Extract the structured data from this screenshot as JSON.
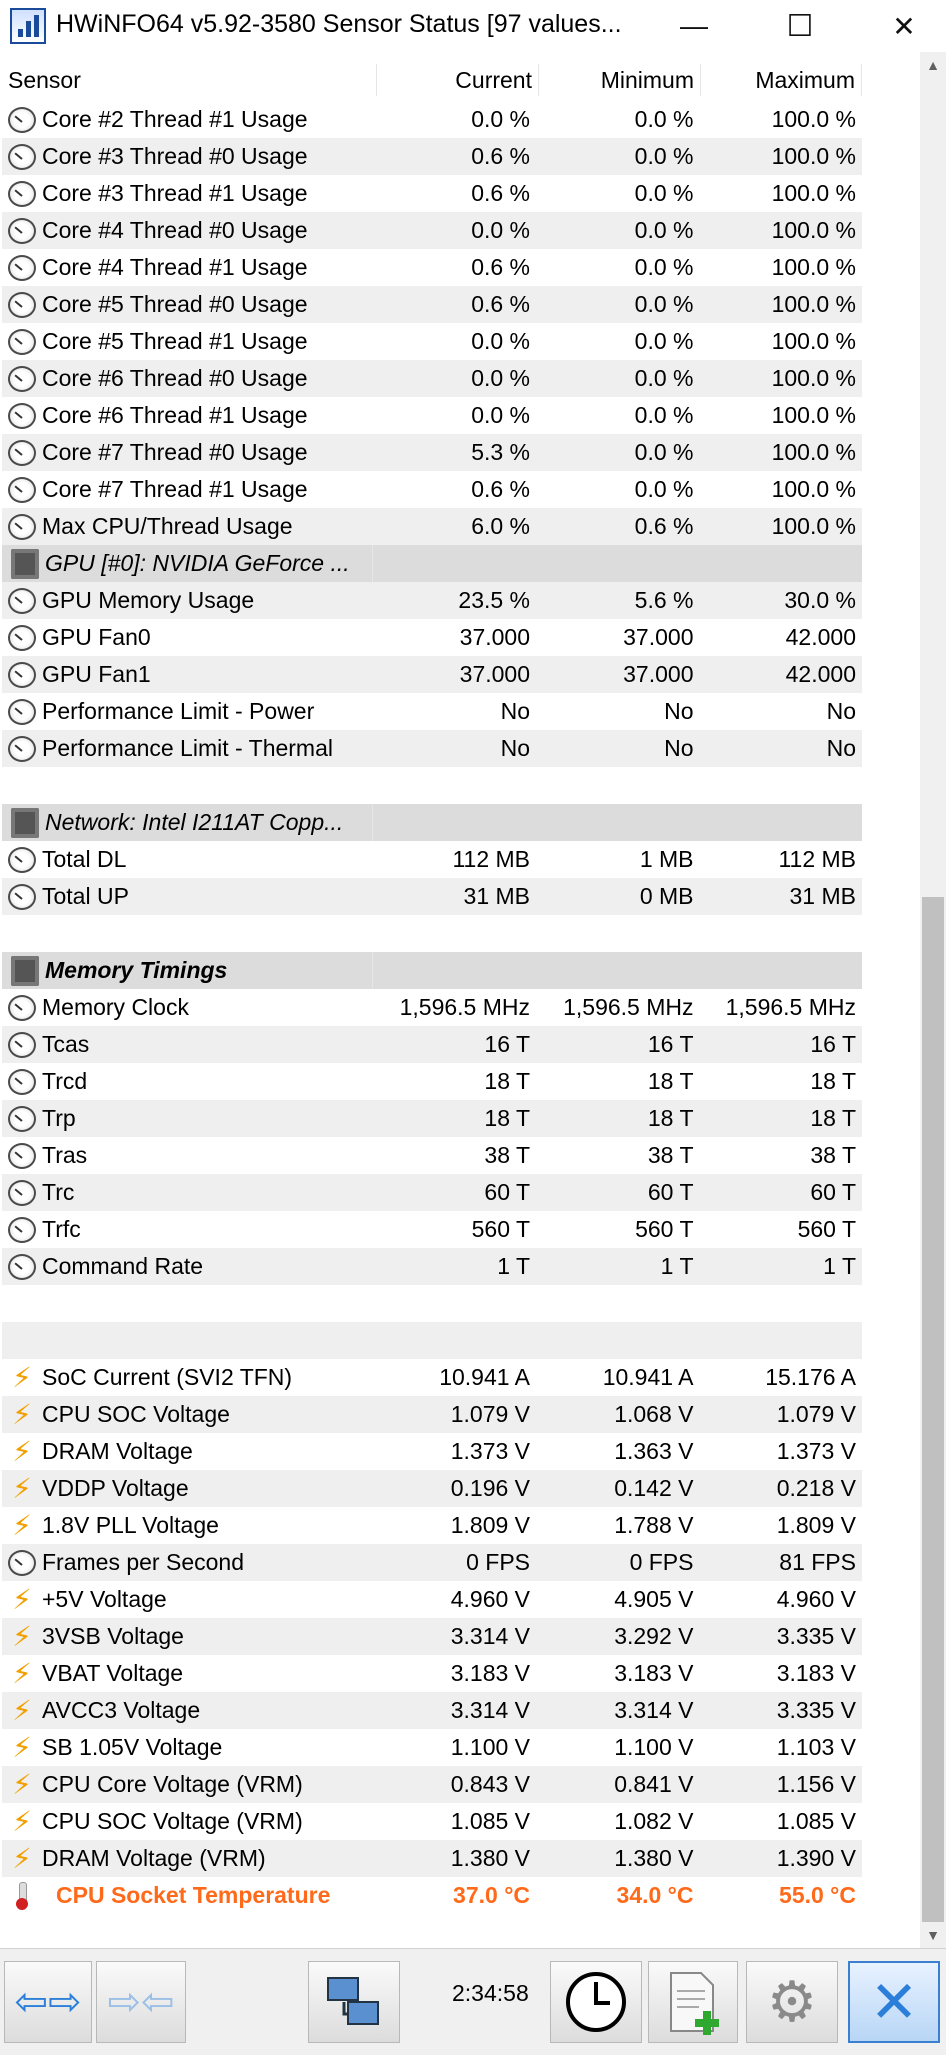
{
  "window": {
    "title": "HWiNFO64 v5.92-3580 Sensor Status [97 values...",
    "minimize": "—",
    "maximize": "☐",
    "close": "✕"
  },
  "columns": [
    "Sensor",
    "Current",
    "Minimum",
    "Maximum"
  ],
  "rows": [
    {
      "icon": "gauge",
      "name": "Core #2 Thread #1 Usage",
      "cur": "0.0 %",
      "min": "0.0 %",
      "max": "100.0 %"
    },
    {
      "icon": "gauge",
      "name": "Core #3 Thread #0 Usage",
      "cur": "0.6 %",
      "min": "0.0 %",
      "max": "100.0 %"
    },
    {
      "icon": "gauge",
      "name": "Core #3 Thread #1 Usage",
      "cur": "0.6 %",
      "min": "0.0 %",
      "max": "100.0 %"
    },
    {
      "icon": "gauge",
      "name": "Core #4 Thread #0 Usage",
      "cur": "0.0 %",
      "min": "0.0 %",
      "max": "100.0 %"
    },
    {
      "icon": "gauge",
      "name": "Core #4 Thread #1 Usage",
      "cur": "0.6 %",
      "min": "0.0 %",
      "max": "100.0 %"
    },
    {
      "icon": "gauge",
      "name": "Core #5 Thread #0 Usage",
      "cur": "0.6 %",
      "min": "0.0 %",
      "max": "100.0 %"
    },
    {
      "icon": "gauge",
      "name": "Core #5 Thread #1 Usage",
      "cur": "0.0 %",
      "min": "0.0 %",
      "max": "100.0 %"
    },
    {
      "icon": "gauge",
      "name": "Core #6 Thread #0 Usage",
      "cur": "0.0 %",
      "min": "0.0 %",
      "max": "100.0 %"
    },
    {
      "icon": "gauge",
      "name": "Core #6 Thread #1 Usage",
      "cur": "0.0 %",
      "min": "0.0 %",
      "max": "100.0 %"
    },
    {
      "icon": "gauge",
      "name": "Core #7 Thread #0 Usage",
      "cur": "5.3 %",
      "min": "0.0 %",
      "max": "100.0 %"
    },
    {
      "icon": "gauge",
      "name": "Core #7 Thread #1 Usage",
      "cur": "0.6 %",
      "min": "0.0 %",
      "max": "100.0 %"
    },
    {
      "icon": "gauge",
      "name": "Max CPU/Thread Usage",
      "cur": "6.0 %",
      "min": "0.6 %",
      "max": "100.0 %"
    },
    {
      "type": "group",
      "icon": "chip",
      "name": "GPU [#0]: NVIDIA GeForce ..."
    },
    {
      "icon": "gauge",
      "name": "GPU Memory Usage",
      "cur": "23.5 %",
      "min": "5.6 %",
      "max": "30.0 %"
    },
    {
      "icon": "gauge",
      "name": "GPU Fan0",
      "cur": "37.000",
      "min": "37.000",
      "max": "42.000"
    },
    {
      "icon": "gauge",
      "name": "GPU Fan1",
      "cur": "37.000",
      "min": "37.000",
      "max": "42.000"
    },
    {
      "icon": "gauge",
      "name": "Performance Limit - Power",
      "cur": "No",
      "min": "No",
      "max": "No"
    },
    {
      "icon": "gauge",
      "name": "Performance Limit - Thermal",
      "cur": "No",
      "min": "No",
      "max": "No"
    },
    {
      "type": "spacer"
    },
    {
      "type": "group",
      "icon": "chip",
      "name": "Network: Intel I211AT Copp..."
    },
    {
      "icon": "gauge",
      "name": "Total DL",
      "cur": "112 MB",
      "min": "1 MB",
      "max": "112 MB"
    },
    {
      "icon": "gauge",
      "name": "Total UP",
      "cur": "31 MB",
      "min": "0 MB",
      "max": "31 MB"
    },
    {
      "type": "spacer"
    },
    {
      "type": "group",
      "bold": true,
      "icon": "chip",
      "name": "Memory Timings"
    },
    {
      "icon": "gauge",
      "name": "Memory Clock",
      "cur": "1,596.5 MHz",
      "min": "1,596.5 MHz",
      "max": "1,596.5 MHz"
    },
    {
      "icon": "gauge",
      "name": "Tcas",
      "cur": "16 T",
      "min": "16 T",
      "max": "16 T"
    },
    {
      "icon": "gauge",
      "name": "Trcd",
      "cur": "18 T",
      "min": "18 T",
      "max": "18 T"
    },
    {
      "icon": "gauge",
      "name": "Trp",
      "cur": "18 T",
      "min": "18 T",
      "max": "18 T"
    },
    {
      "icon": "gauge",
      "name": "Tras",
      "cur": "38 T",
      "min": "38 T",
      "max": "38 T"
    },
    {
      "icon": "gauge",
      "name": "Trc",
      "cur": "60 T",
      "min": "60 T",
      "max": "60 T"
    },
    {
      "icon": "gauge",
      "name": "Trfc",
      "cur": "560 T",
      "min": "560 T",
      "max": "560 T"
    },
    {
      "icon": "gauge",
      "name": "Command Rate",
      "cur": "1 T",
      "min": "1 T",
      "max": "1 T"
    },
    {
      "type": "spacer"
    },
    {
      "type": "spacer"
    },
    {
      "icon": "bolt",
      "name": "SoC Current (SVI2 TFN)",
      "cur": "10.941 A",
      "min": "10.941 A",
      "max": "15.176 A"
    },
    {
      "icon": "bolt",
      "name": "CPU SOC Voltage",
      "cur": "1.079 V",
      "min": "1.068 V",
      "max": "1.079 V"
    },
    {
      "icon": "bolt",
      "name": "DRAM Voltage",
      "cur": "1.373 V",
      "min": "1.363 V",
      "max": "1.373 V"
    },
    {
      "icon": "bolt",
      "name": "VDDP Voltage",
      "cur": "0.196 V",
      "min": "0.142 V",
      "max": "0.218 V"
    },
    {
      "icon": "bolt",
      "name": "1.8V PLL Voltage",
      "cur": "1.809 V",
      "min": "1.788 V",
      "max": "1.809 V"
    },
    {
      "icon": "gauge",
      "name": "Frames per Second",
      "cur": "0 FPS",
      "min": "0 FPS",
      "max": "81 FPS"
    },
    {
      "icon": "bolt",
      "name": "+5V Voltage",
      "cur": "4.960 V",
      "min": "4.905 V",
      "max": "4.960 V"
    },
    {
      "icon": "bolt",
      "name": "3VSB Voltage",
      "cur": "3.314 V",
      "min": "3.292 V",
      "max": "3.335 V"
    },
    {
      "icon": "bolt",
      "name": "VBAT Voltage",
      "cur": "3.183 V",
      "min": "3.183 V",
      "max": "3.183 V"
    },
    {
      "icon": "bolt",
      "name": "AVCC3 Voltage",
      "cur": "3.314 V",
      "min": "3.314 V",
      "max": "3.335 V"
    },
    {
      "icon": "bolt",
      "name": "SB 1.05V Voltage",
      "cur": "1.100 V",
      "min": "1.100 V",
      "max": "1.103 V"
    },
    {
      "icon": "bolt",
      "name": "CPU Core Voltage (VRM)",
      "cur": "0.843 V",
      "min": "0.841 V",
      "max": "1.156 V"
    },
    {
      "icon": "bolt",
      "name": "CPU SOC Voltage (VRM)",
      "cur": "1.085 V",
      "min": "1.082 V",
      "max": "1.085 V"
    },
    {
      "icon": "bolt",
      "name": "DRAM Voltage (VRM)",
      "cur": "1.380 V",
      "min": "1.380 V",
      "max": "1.390 V"
    },
    {
      "icon": "therm",
      "hot": true,
      "name": "CPU Socket Temperature",
      "cur": "37.0 °C",
      "min": "34.0 °C",
      "max": "55.0 °C"
    }
  ],
  "toolbar": {
    "elapsed_time": "2:34:58",
    "buttons": [
      "nav-arrows-icon",
      "collapse-arrows-icon",
      "network-icon",
      "clock-icon",
      "report-add-icon",
      "gear-icon",
      "close-x-icon"
    ]
  },
  "colors": {
    "hot": "#ff6a1a",
    "bolt": "#f0a000",
    "alt_row": "#efefef",
    "group_row": "#dcdcdc"
  }
}
